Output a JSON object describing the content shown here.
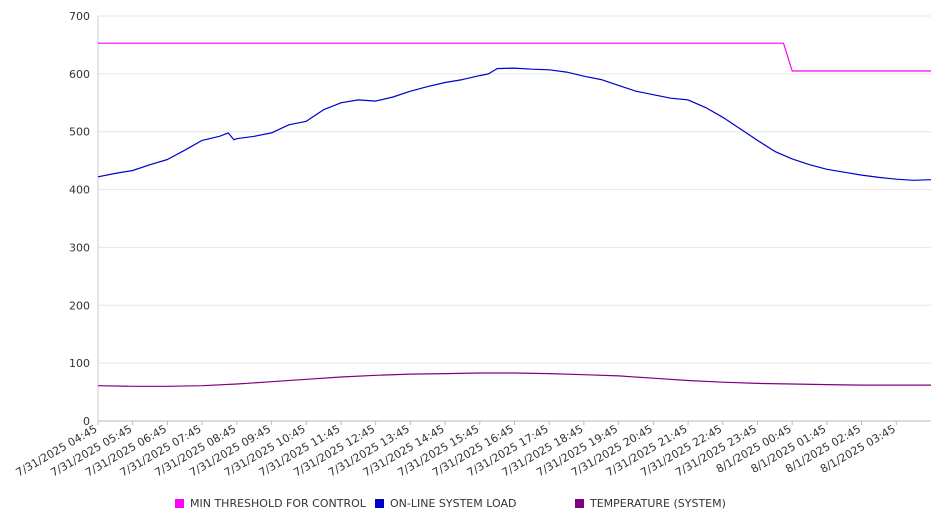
{
  "chart_data": {
    "type": "line",
    "title": "",
    "xlabel": "",
    "ylabel": "",
    "ylim": [
      0,
      700
    ],
    "y_ticks": [
      0,
      100,
      200,
      300,
      400,
      500,
      600,
      700
    ],
    "grid": "horizontal",
    "legend_position": "bottom",
    "x_tick_labels": [
      "7/31/2025 04:45",
      "7/31/2025 05:45",
      "7/31/2025 06:45",
      "7/31/2025 07:45",
      "7/31/2025 08:45",
      "7/31/2025 09:45",
      "7/31/2025 10:45",
      "7/31/2025 11:45",
      "7/31/2025 12:45",
      "7/31/2025 13:45",
      "7/31/2025 14:45",
      "7/31/2025 15:45",
      "7/31/2025 16:45",
      "7/31/2025 17:45",
      "7/31/2025 18:45",
      "7/31/2025 19:45",
      "7/31/2025 20:45",
      "7/31/2025 21:45",
      "7/31/2025 22:45",
      "7/31/2025 23:45",
      "8/1/2025 00:45",
      "8/1/2025 01:45",
      "8/1/2025 02:45",
      "8/1/2025 03:45"
    ],
    "x_range": [
      "7/31/2025 04:45",
      "8/1/2025 04:45"
    ],
    "series": [
      {
        "name": "MIN THRESHOLD FOR CONTROL",
        "color": "#ff00ff",
        "points": [
          [
            "7/31/2025 04:45",
            653
          ],
          [
            "8/1/2025 00:30",
            653
          ],
          [
            "8/1/2025 00:45",
            605
          ],
          [
            "8/1/2025 04:45",
            605
          ]
        ]
      },
      {
        "name": "ON-LINE SYSTEM LOAD",
        "color": "#0000cc",
        "points": [
          [
            "7/31/2025 04:45",
            422
          ],
          [
            "7/31/2025 05:15",
            428
          ],
          [
            "7/31/2025 05:45",
            433
          ],
          [
            "7/31/2025 06:15",
            443
          ],
          [
            "7/31/2025 06:45",
            452
          ],
          [
            "7/31/2025 07:15",
            468
          ],
          [
            "7/31/2025 07:45",
            485
          ],
          [
            "7/31/2025 08:15",
            492
          ],
          [
            "7/31/2025 08:30",
            498
          ],
          [
            "7/31/2025 08:40",
            486
          ],
          [
            "7/31/2025 08:45",
            488
          ],
          [
            "7/31/2025 09:15",
            492
          ],
          [
            "7/31/2025 09:45",
            498
          ],
          [
            "7/31/2025 10:15",
            512
          ],
          [
            "7/31/2025 10:45",
            518
          ],
          [
            "7/31/2025 11:15",
            538
          ],
          [
            "7/31/2025 11:45",
            550
          ],
          [
            "7/31/2025 12:15",
            555
          ],
          [
            "7/31/2025 12:45",
            553
          ],
          [
            "7/31/2025 13:15",
            560
          ],
          [
            "7/31/2025 13:45",
            570
          ],
          [
            "7/31/2025 14:15",
            578
          ],
          [
            "7/31/2025 14:45",
            585
          ],
          [
            "7/31/2025 15:15",
            590
          ],
          [
            "7/31/2025 15:45",
            597
          ],
          [
            "7/31/2025 16:00",
            600
          ],
          [
            "7/31/2025 16:15",
            609
          ],
          [
            "7/31/2025 16:45",
            610
          ],
          [
            "7/31/2025 17:15",
            608
          ],
          [
            "7/31/2025 17:45",
            607
          ],
          [
            "7/31/2025 18:15",
            603
          ],
          [
            "7/31/2025 18:45",
            596
          ],
          [
            "7/31/2025 19:15",
            590
          ],
          [
            "7/31/2025 19:45",
            580
          ],
          [
            "7/31/2025 20:15",
            570
          ],
          [
            "7/31/2025 20:45",
            564
          ],
          [
            "7/31/2025 21:15",
            558
          ],
          [
            "7/31/2025 21:45",
            555
          ],
          [
            "7/31/2025 22:15",
            542
          ],
          [
            "7/31/2025 22:45",
            525
          ],
          [
            "7/31/2025 23:15",
            505
          ],
          [
            "7/31/2025 23:45",
            485
          ],
          [
            "8/1/2025 00:15",
            466
          ],
          [
            "8/1/2025 00:45",
            453
          ],
          [
            "8/1/2025 01:15",
            443
          ],
          [
            "8/1/2025 01:45",
            435
          ],
          [
            "8/1/2025 02:15",
            430
          ],
          [
            "8/1/2025 02:45",
            425
          ],
          [
            "8/1/2025 03:15",
            421
          ],
          [
            "8/1/2025 03:45",
            418
          ],
          [
            "8/1/2025 04:15",
            416
          ],
          [
            "8/1/2025 04:45",
            417
          ]
        ]
      },
      {
        "name": "TEMPERATURE (SYSTEM)",
        "color": "#800080",
        "points": [
          [
            "7/31/2025 04:45",
            61
          ],
          [
            "7/31/2025 05:45",
            60
          ],
          [
            "7/31/2025 06:45",
            60
          ],
          [
            "7/31/2025 07:45",
            61
          ],
          [
            "7/31/2025 08:45",
            64
          ],
          [
            "7/31/2025 09:45",
            68
          ],
          [
            "7/31/2025 10:45",
            72
          ],
          [
            "7/31/2025 11:45",
            76
          ],
          [
            "7/31/2025 12:45",
            79
          ],
          [
            "7/31/2025 13:45",
            81
          ],
          [
            "7/31/2025 14:45",
            82
          ],
          [
            "7/31/2025 15:45",
            83
          ],
          [
            "7/31/2025 16:45",
            83
          ],
          [
            "7/31/2025 17:45",
            82
          ],
          [
            "7/31/2025 18:45",
            80
          ],
          [
            "7/31/2025 19:45",
            78
          ],
          [
            "7/31/2025 20:45",
            74
          ],
          [
            "7/31/2025 21:45",
            70
          ],
          [
            "7/31/2025 22:45",
            67
          ],
          [
            "7/31/2025 23:45",
            65
          ],
          [
            "8/1/2025 00:45",
            64
          ],
          [
            "8/1/2025 01:45",
            63
          ],
          [
            "8/1/2025 02:45",
            62
          ],
          [
            "8/1/2025 03:45",
            62
          ],
          [
            "8/1/2025 04:45",
            62
          ]
        ]
      }
    ]
  }
}
